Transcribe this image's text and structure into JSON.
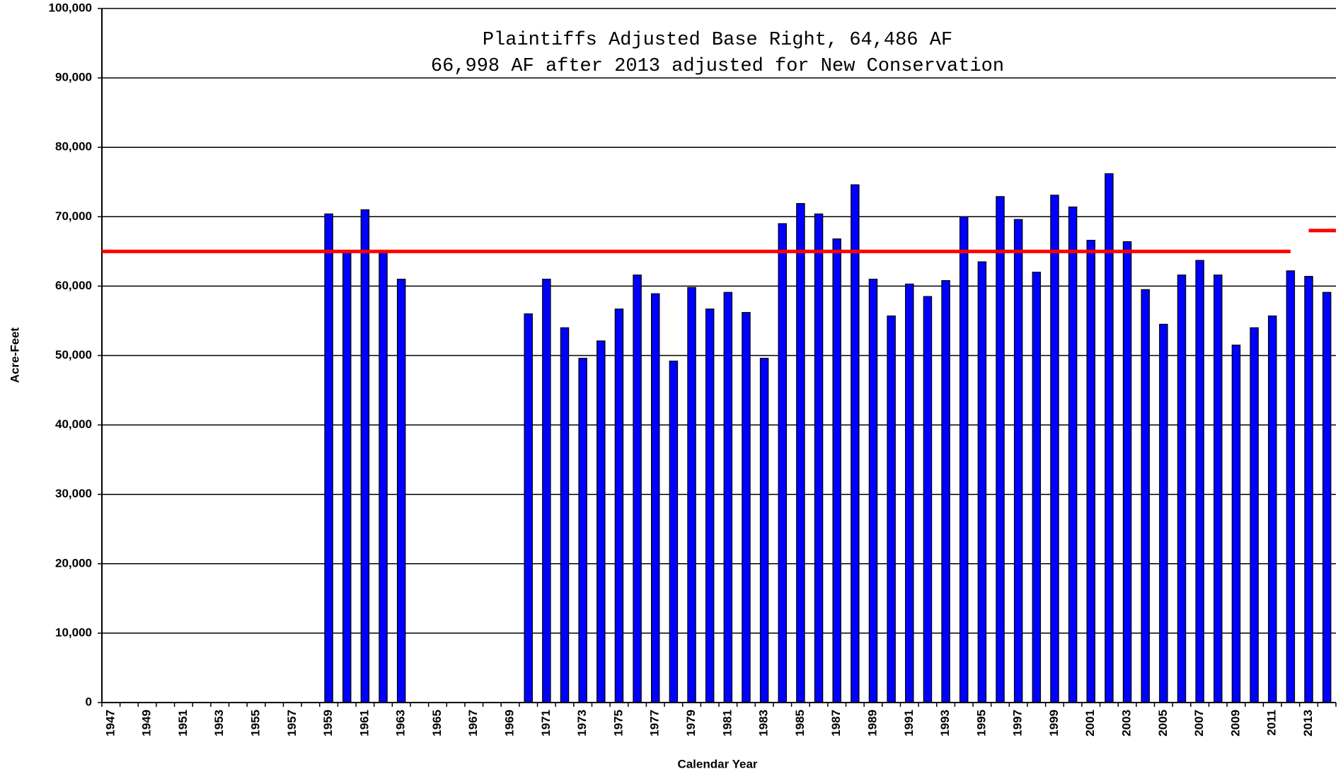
{
  "chart_data": {
    "type": "bar",
    "annotation": [
      "Plaintiffs Adjusted Base Right, 64,486 AF",
      "66,998 AF after 2013 adjusted for New Conservation"
    ],
    "xlabel": "Calendar Year",
    "ylabel": "Acre-Feet",
    "categories": [
      "1947",
      null,
      "1949",
      null,
      "1951",
      null,
      "1953",
      null,
      "1955",
      null,
      "1957",
      null,
      "1959",
      null,
      "1961",
      null,
      "1963",
      null,
      "1965",
      null,
      "1967",
      null,
      "1969",
      null,
      "1971",
      null,
      "1973",
      null,
      "1975",
      null,
      "1977",
      null,
      "1979",
      null,
      "1981",
      null,
      "1983",
      null,
      "1985",
      null,
      "1987",
      null,
      "1989",
      null,
      "1991",
      null,
      "1993",
      null,
      "1995",
      null,
      "1997",
      null,
      "1999",
      null,
      "2001",
      null,
      "2003",
      null,
      "2005",
      null,
      "2007",
      null,
      "2009",
      null,
      "2011",
      null,
      "2013",
      null
    ],
    "values": [
      null,
      null,
      null,
      null,
      null,
      null,
      null,
      null,
      null,
      null,
      null,
      null,
      70400,
      65000,
      71000,
      65000,
      61000,
      null,
      null,
      null,
      null,
      null,
      null,
      56000,
      61000,
      54000,
      49600,
      52100,
      56700,
      61600,
      58900,
      49200,
      59800,
      56700,
      59100,
      56200,
      49600,
      69000,
      71900,
      70400,
      66800,
      74600,
      61000,
      55700,
      60300,
      58500,
      60800,
      70000,
      63500,
      72900,
      69600,
      62000,
      73100,
      71400,
      66600,
      76200,
      66400,
      59500,
      54500,
      61600,
      63700,
      61600,
      51500,
      54000,
      55700,
      62200,
      61400,
      59100
    ],
    "color": "#0000ff",
    "lines": [
      {
        "color": "#ff0000",
        "values": [
          65000,
          65000,
          65000,
          65000,
          65000,
          65000,
          65000,
          65000,
          65000,
          65000,
          65000,
          65000,
          65000,
          65000,
          65000,
          65000,
          65000,
          65000,
          65000,
          65000,
          65000,
          65000,
          65000,
          65000,
          65000,
          65000,
          65000,
          65000,
          65000,
          65000,
          65000,
          65000,
          65000,
          65000,
          65000,
          65000,
          65000,
          65000,
          65000,
          65000,
          65000,
          65000,
          65000,
          65000,
          65000,
          65000,
          65000,
          65000,
          65000,
          65000,
          65000,
          65000,
          65000,
          65000,
          65000,
          65000,
          65000,
          65000,
          65000,
          65000,
          65000,
          65000,
          65000,
          65000,
          65000,
          65000,
          null,
          null
        ]
      },
      {
        "color": "#ff0000",
        "values": [
          null,
          null,
          null,
          null,
          null,
          null,
          null,
          null,
          null,
          null,
          null,
          null,
          null,
          null,
          null,
          null,
          null,
          null,
          null,
          null,
          null,
          null,
          null,
          null,
          null,
          null,
          null,
          null,
          null,
          null,
          null,
          null,
          null,
          null,
          null,
          null,
          null,
          null,
          null,
          null,
          null,
          null,
          null,
          null,
          null,
          null,
          null,
          null,
          null,
          null,
          null,
          null,
          null,
          null,
          null,
          null,
          null,
          null,
          null,
          null,
          null,
          null,
          null,
          null,
          null,
          null,
          68000,
          68000
        ]
      }
    ],
    "ylim": [
      0,
      100000
    ],
    "yticks": [
      0,
      {
        "value": 10000,
        "label": "10,000"
      },
      {
        "value": 20000,
        "label": "20,000"
      },
      {
        "value": 30000,
        "label": "30,000"
      },
      {
        "value": 40000,
        "label": "40,000"
      },
      {
        "value": 50000,
        "label": "50,000"
      },
      {
        "value": 60000,
        "label": "60,000"
      },
      {
        "value": 70000,
        "label": "70,000"
      },
      {
        "value": 80000,
        "label": "80,000"
      },
      {
        "value": 90000,
        "label": "90,000"
      },
      {
        "value": 100000,
        "label": "100,000"
      }
    ],
    "grid": true
  }
}
